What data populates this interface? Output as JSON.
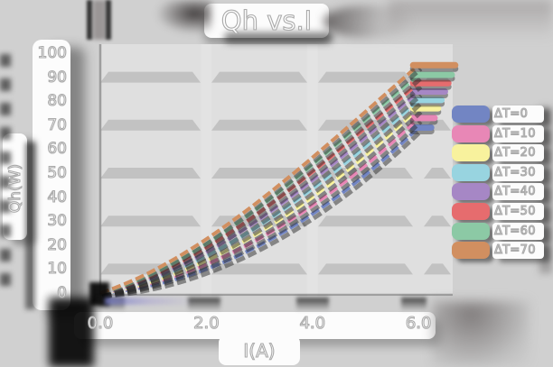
{
  "chart_data": {
    "type": "line",
    "title": "Qh vs.I",
    "xlabel": "I(A)",
    "ylabel": "Qh(W)",
    "xlim": [
      0,
      6.5
    ],
    "ylim": [
      0,
      100
    ],
    "grid": "horizontal gray beveled bands",
    "grid_band_values": [
      10,
      30,
      50,
      70,
      90
    ],
    "legend_position": "right",
    "line_style": "dashed",
    "colors": {
      "page_bg": "#d0d0d0",
      "plot_bg": "#dfdfdf",
      "band": "#c2c2c2",
      "vgrid_gap": "#e4e4e4",
      "axis": "#8a8a8a",
      "text": "#ffffff",
      "text_outline": "#ababab",
      "shadow": "#2b2b2b"
    },
    "x_ticks": [
      {
        "value": 0,
        "label": "0.0"
      },
      {
        "value": 2,
        "label": "2.0"
      },
      {
        "value": 4,
        "label": "4.0"
      },
      {
        "value": 6,
        "label": "6.0"
      }
    ],
    "y_ticks": [
      {
        "value": 0,
        "label": "0"
      },
      {
        "value": 10,
        "label": "10"
      },
      {
        "value": 20,
        "label": "20"
      },
      {
        "value": 30,
        "label": "30"
      },
      {
        "value": 40,
        "label": "40"
      },
      {
        "value": 50,
        "label": "50"
      },
      {
        "value": 60,
        "label": "60"
      },
      {
        "value": 70,
        "label": "70"
      },
      {
        "value": 80,
        "label": "80"
      },
      {
        "value": 90,
        "label": "90"
      },
      {
        "value": 100,
        "label": "100"
      }
    ],
    "x": [
      0,
      2,
      4,
      6
    ],
    "series": [
      {
        "name": "ΔT=0",
        "color": "#7285c3",
        "values": [
          0,
          10,
          33,
          69
        ]
      },
      {
        "name": "ΔT=10",
        "color": "#e887b6",
        "values": [
          0,
          12,
          36.5,
          73
        ]
      },
      {
        "name": "ΔT=20",
        "color": "#f8f29d",
        "values": [
          0,
          13.5,
          40,
          77
        ]
      },
      {
        "name": "ΔT=30",
        "color": "#98d4e0",
        "values": [
          0,
          15.5,
          43.5,
          80.5
        ]
      },
      {
        "name": "ΔT=40",
        "color": "#a687c5",
        "values": [
          0,
          17,
          47,
          84
        ]
      },
      {
        "name": "ΔT=50",
        "color": "#e66c6e",
        "values": [
          0,
          19,
          50.5,
          87.5
        ]
      },
      {
        "name": "ΔT=60",
        "color": "#8cc9a5",
        "values": [
          0,
          20.5,
          53.5,
          91
        ]
      },
      {
        "name": "ΔT=70",
        "color": "#d18f60",
        "values": [
          0,
          22.5,
          56.5,
          95
        ]
      }
    ]
  }
}
